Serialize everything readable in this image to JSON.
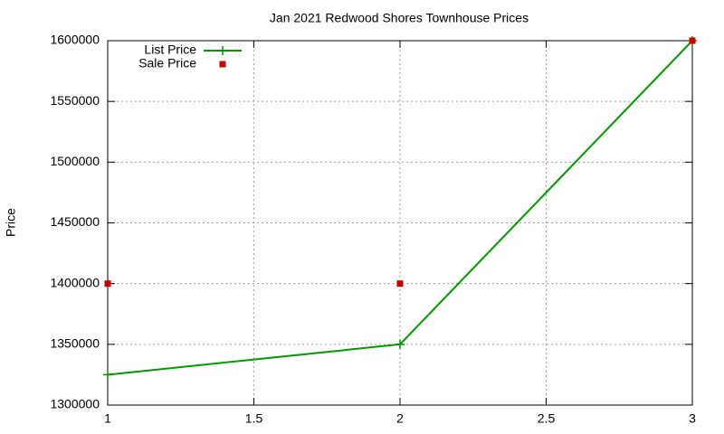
{
  "chart_data": {
    "type": "line",
    "title": "Jan 2021 Redwood Shores Townhouse Prices",
    "y_label": "Price",
    "series": [
      {
        "name": "List Price",
        "color": "#009900",
        "style": "linespoints",
        "marker": "plus",
        "x": [
          1,
          2,
          3
        ],
        "values": [
          1325000,
          1350000,
          1600000
        ]
      },
      {
        "name": "Sale Price",
        "color": "#cc0000",
        "style": "points",
        "marker": "square",
        "x": [
          1,
          2,
          3
        ],
        "values": [
          1400000,
          1400000,
          1600000
        ]
      }
    ],
    "xlim": [
      1,
      3
    ],
    "xticks": [
      1,
      1.5,
      2,
      2.5,
      3
    ],
    "ylim": [
      1300000,
      1600000
    ],
    "yticks": [
      1300000,
      1350000,
      1400000,
      1450000,
      1500000,
      1550000,
      1600000
    ],
    "grid": true,
    "legend": "top-left"
  }
}
